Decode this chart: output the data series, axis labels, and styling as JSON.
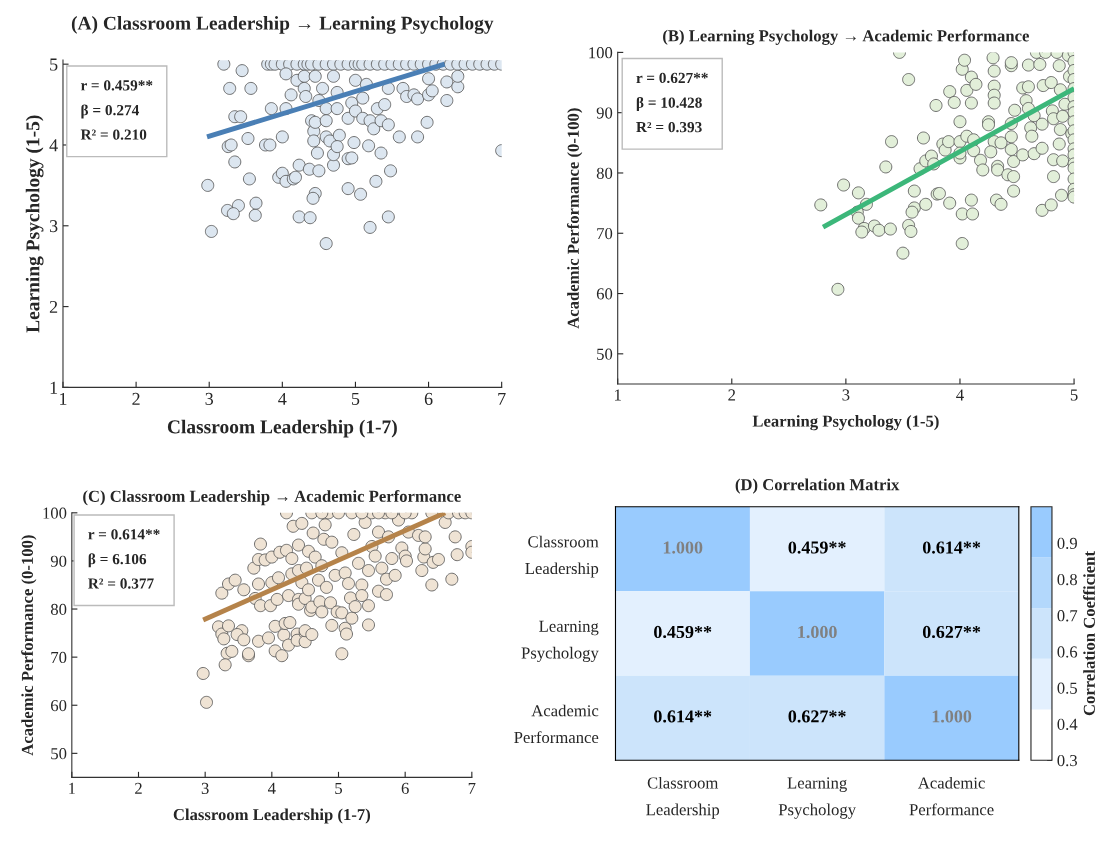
{
  "chart_data": [
    {
      "type": "scatter",
      "title": "(A) Classroom Leadership → Learning Psychology",
      "xlabel": "Classroom Leadership (1-7)",
      "ylabel": "Learning Psychology (1-5)",
      "xlim": [
        1,
        7
      ],
      "ylim": [
        1,
        5.05
      ],
      "xticks": [
        1,
        2,
        3,
        4,
        5,
        6,
        7
      ],
      "yticks": [
        1,
        2,
        3,
        4,
        5
      ],
      "marker": "circle",
      "grid": false,
      "annotations": [
        "r = 0.459**",
        "β = 0.274",
        "R² = 0.210"
      ],
      "series": [
        {
          "type": "scatter",
          "color": "#dce6f0",
          "x": [
            3.2,
            3.8,
            3.85,
            3.9,
            4.0,
            4.1,
            4.2,
            4.3,
            4.35,
            4.4,
            4.5,
            4.6,
            4.7,
            4.8,
            4.9,
            5.0,
            5.05,
            5.1,
            5.2,
            5.3,
            5.4,
            5.5,
            5.6,
            5.7,
            5.8,
            5.9,
            6.0,
            6.1,
            6.2,
            6.3,
            6.4,
            6.5,
            6.6,
            6.7,
            6.8,
            6.9,
            7.0,
            3.45,
            3.28,
            3.57,
            3.35,
            3.43,
            2.98,
            3.03,
            3.26,
            3.3,
            3.53,
            3.35,
            3.55,
            3.25,
            3.4,
            3.33,
            3.63,
            3.64,
            3.77,
            3.83,
            3.85,
            4.0,
            4.05,
            4.05,
            4.12,
            4.2,
            4.3,
            4.3,
            4.32,
            4.4,
            4.43,
            4.43,
            4.45,
            4.45,
            4.55,
            4.5,
            4.6,
            4.6,
            4.6,
            4.65,
            4.7,
            4.75,
            4.78,
            4.75,
            4.9,
            4.95,
            5.0,
            5.0,
            5.1,
            5.1,
            5.15,
            5.2,
            5.25,
            5.3,
            5.35,
            5.4,
            5.45,
            5.45,
            5.6,
            5.65,
            5.7,
            5.8,
            5.85,
            5.85,
            5.98,
            6.0,
            6.0,
            6.05,
            6.25,
            6.25,
            6.4,
            6.4,
            7.0,
            3.95,
            4.0,
            4.05,
            4.15,
            4.18,
            4.23,
            4.37,
            4.5,
            4.48,
            4.7,
            4.7,
            4.75,
            4.9,
            4.95,
            4.98,
            5.18,
            5.35,
            5.28,
            5.48,
            4.9,
            5.07,
            4.45,
            4.42,
            4.23,
            4.38,
            5.45,
            5.2,
            4.6
          ],
          "values": [
            5,
            5,
            5,
            5,
            5,
            5,
            5,
            5,
            5,
            5,
            5,
            5,
            5,
            5,
            5,
            5,
            5,
            5,
            5,
            5,
            5,
            5,
            5,
            5,
            5,
            5,
            5,
            5,
            5,
            5,
            5,
            5,
            5,
            5,
            5,
            5,
            5,
            4.92,
            4.7,
            4.7,
            4.35,
            4.35,
            3.5,
            2.93,
            3.98,
            4.0,
            4.08,
            3.79,
            3.58,
            3.19,
            3.25,
            3.15,
            3.13,
            3.28,
            4.0,
            4.0,
            4.45,
            4.1,
            4.45,
            4.88,
            4.62,
            4.8,
            4.85,
            4.7,
            4.6,
            4.3,
            4.17,
            4.05,
            4.28,
            4.85,
            4.7,
            4.55,
            4.45,
            4.3,
            4.1,
            4.05,
            4.85,
            4.65,
            4.12,
            4.45,
            4.33,
            4.52,
            4.42,
            4.8,
            4.58,
            4.33,
            4.75,
            4.3,
            4.2,
            4.45,
            4.3,
            4.5,
            4.25,
            4.7,
            4.1,
            4.7,
            4.6,
            4.62,
            4.1,
            4.57,
            4.28,
            4.62,
            4.82,
            4.67,
            4.55,
            4.78,
            4.72,
            4.85,
            3.93,
            3.6,
            3.65,
            3.55,
            3.58,
            3.6,
            3.75,
            3.7,
            3.68,
            3.9,
            3.75,
            3.88,
            3.98,
            3.83,
            3.84,
            4.03,
            3.99,
            3.9,
            3.55,
            3.68,
            3.46,
            3.39,
            3.4,
            3.34,
            3.11,
            3.1,
            3.11,
            2.98,
            2.78
          ]
        },
        {
          "type": "line",
          "marker": "none",
          "color": "#4a7fb5",
          "x": [
            2.97,
            6.22
          ],
          "values": [
            4.1,
            5.0
          ]
        }
      ]
    },
    {
      "type": "scatter",
      "title": "(B) Learning Psychology → Academic Performance",
      "xlabel": "Learning Psychology (1-5)",
      "ylabel": "Academic Performance (0-100)",
      "xlim": [
        1,
        5
      ],
      "ylim": [
        45,
        100
      ],
      "xticks": [
        1,
        2,
        3,
        4,
        5
      ],
      "yticks": [
        50,
        60,
        70,
        80,
        90,
        100
      ],
      "marker": "circle",
      "grid": false,
      "annotations": [
        "r = 0.627**",
        "β = 10.428",
        "R² = 0.393"
      ],
      "series": [
        {
          "type": "scatter",
          "color": "#e2efd9",
          "x": [
            3.47,
            3.55,
            3.4,
            3.35,
            2.98,
            2.78,
            3.11,
            3.18,
            3.1,
            3.11,
            3.16,
            3.14,
            3.25,
            3.29,
            3.39,
            3.55,
            3.57,
            3.5,
            2.93,
            3.6,
            3.6,
            3.58,
            3.7,
            3.8,
            3.82,
            3.91,
            3.68,
            3.65,
            3.7,
            3.75,
            3.77,
            3.85,
            3.87,
            3.9,
            3.79,
            3.91,
            3.95,
            4.0,
            4.0,
            4.0,
            4.0,
            4.02,
            4.04,
            4.06,
            4.06,
            4.1,
            4.14,
            4.1,
            4.12,
            4.12,
            4.18,
            4.2,
            4.02,
            4.1,
            4.11,
            4.02,
            4.29,
            4.3,
            4.3,
            4.3,
            4.3,
            4.25,
            4.25,
            4.3,
            4.27,
            4.33,
            4.33,
            4.36,
            4.32,
            4.36,
            4.42,
            4.45,
            4.45,
            4.45,
            4.45,
            4.45,
            4.47,
            4.47,
            4.47,
            4.48,
            4.55,
            4.55,
            4.58,
            4.6,
            4.6,
            4.6,
            4.62,
            4.63,
            4.65,
            4.65,
            4.67,
            4.7,
            4.72,
            4.72,
            4.73,
            4.72,
            4.75,
            4.8,
            4.81,
            4.82,
            4.82,
            4.82,
            4.8,
            4.85,
            4.87,
            4.88,
            4.88,
            4.87,
            4.9,
            4.9,
            4.89,
            4.92,
            4.95,
            4.96,
            4.98,
            5,
            5,
            5,
            5,
            5,
            5,
            5,
            5,
            5,
            5,
            5,
            5,
            5,
            5,
            5,
            5,
            5,
            5,
            5
          ],
          "values": [
            100,
            95.5,
            85.2,
            81,
            78,
            74.7,
            76.7,
            74.8,
            73.5,
            72.5,
            70.8,
            70.2,
            71.2,
            70.5,
            70.7,
            71.3,
            70.3,
            66.7,
            60.7,
            77,
            74.2,
            73.5,
            74.8,
            76.5,
            76.6,
            75,
            85.8,
            80.7,
            82,
            82.8,
            81.5,
            84.8,
            83.8,
            85.2,
            91.2,
            93.5,
            91.7,
            85.2,
            82.5,
            83.3,
            88.5,
            97.2,
            98.7,
            86.1,
            93.7,
            95.9,
            94.7,
            91.6,
            85.5,
            83.7,
            82.1,
            80.5,
            73.2,
            75.5,
            73.2,
            68.3,
            99.1,
            96.9,
            94.4,
            92.9,
            91.6,
            88.5,
            88.0,
            85.2,
            83.5,
            81.1,
            80.5,
            85,
            75.5,
            74.8,
            79.7,
            97.8,
            98.3,
            86,
            88.2,
            83.9,
            81.9,
            79.4,
            77,
            90.4,
            83,
            94.1,
            92,
            94.3,
            97.9,
            90.7,
            87.5,
            86.1,
            89.5,
            83.2,
            100,
            98,
            88.1,
            84.1,
            94.5,
            73.8,
            100,
            95,
            90.3,
            89,
            82.2,
            79.4,
            74.7,
            100,
            97.8,
            93.8,
            87.2,
            84.8,
            89.4,
            82,
            76.3,
            91.4,
            99.5,
            96,
            86.5,
            100,
            98.5,
            97,
            95.5,
            94,
            92.5,
            91,
            90,
            88.5,
            87,
            85.5,
            84,
            83,
            81.5,
            80.8,
            79,
            77.3,
            76.4,
            76
          ]
        },
        {
          "type": "line",
          "marker": "none",
          "color": "#3cb77a",
          "x": [
            2.8,
            5.0
          ],
          "values": [
            71,
            94
          ]
        }
      ]
    },
    {
      "type": "scatter",
      "title": "(C) Classroom Leadership → Academic Performance",
      "xlabel": "Classroom Leadership (1-7)",
      "ylabel": "Academic Performance (0-100)",
      "xlim": [
        1,
        7
      ],
      "ylim": [
        45,
        100
      ],
      "xticks": [
        1,
        2,
        3,
        4,
        5,
        6,
        7
      ],
      "yticks": [
        50,
        60,
        70,
        80,
        90,
        100
      ],
      "marker": "circle",
      "grid": false,
      "annotations": [
        "r = 0.614**",
        "β = 6.106",
        "R² = 0.377"
      ],
      "series": [
        {
          "type": "scatter",
          "color": "#efe3d4",
          "x": [
            2.97,
            3.02,
            3.2,
            3.25,
            3.28,
            3.35,
            3.33,
            3.4,
            3.3,
            3.25,
            3.35,
            3.45,
            3.55,
            3.48,
            3.58,
            3.58,
            3.65,
            3.65,
            3.8,
            3.75,
            3.73,
            3.83,
            3.8,
            3.8,
            3.83,
            3.9,
            3.95,
            3.98,
            4.0,
            4.0,
            4.05,
            4.05,
            4.08,
            4.1,
            4.12,
            4.15,
            4.18,
            4.2,
            4.22,
            4.25,
            4.25,
            4.27,
            4.22,
            4.3,
            4.3,
            4.32,
            4.38,
            4.38,
            4.4,
            4.4,
            4.4,
            4.4,
            4.45,
            4.45,
            4.5,
            4.5,
            4.5,
            4.5,
            4.52,
            4.55,
            4.55,
            4.58,
            4.6,
            4.6,
            4.6,
            4.62,
            4.65,
            4.7,
            4.72,
            4.75,
            4.75,
            4.78,
            4.8,
            4.82,
            4.85,
            4.88,
            4.9,
            4.9,
            4.95,
            4.98,
            5.05,
            5.05,
            5.05,
            5.1,
            5.12,
            5.1,
            5.15,
            5.18,
            5.2,
            5.2,
            5.23,
            5.25,
            5.3,
            5.35,
            5.35,
            5.4,
            5.45,
            5.45,
            5.45,
            5.5,
            5.5,
            5.55,
            5.6,
            5.6,
            5.65,
            5.7,
            5.72,
            5.72,
            5.75,
            5.8,
            5.85,
            5.9,
            5.95,
            6.0,
            6.02,
            6.05,
            6.1,
            6.2,
            6.25,
            6.28,
            6.3,
            6.3,
            6.4,
            6.42,
            6.5,
            6.4,
            6.6,
            6.65,
            6.7,
            6.75,
            6.78,
            6.8,
            6.9,
            7.0,
            7.0,
            7.0,
            5.0,
            4.75,
            5.35,
            5.6,
            5.8,
            6.0
          ],
          "values": [
            66.6,
            60.6,
            76.3,
            74.8,
            73.8,
            76.5,
            70.8,
            71.2,
            68.4,
            83.3,
            85.2,
            86,
            75.5,
            74.7,
            73.6,
            84,
            70.3,
            70.7,
            73.3,
            82.2,
            88.5,
            80.7,
            85.2,
            90.3,
            93.5,
            90.2,
            74,
            80.7,
            90.8,
            85.5,
            71.3,
            76.4,
            82,
            86.5,
            91.8,
            70.3,
            74.6,
            77,
            92.2,
            72.5,
            82.8,
            77.2,
            100,
            87.3,
            90.5,
            97.2,
            74.8,
            73.5,
            82,
            81,
            88,
            93.3,
            85.5,
            97.8,
            75,
            73.2,
            75.5,
            82.2,
            88.5,
            84,
            92,
            79.7,
            74.7,
            80.4,
            100,
            95.8,
            90.8,
            86,
            81.5,
            79.4,
            89,
            94.5,
            97.5,
            84.5,
            100,
            81.3,
            76.6,
            93.9,
            87,
            79.4,
            79.2,
            70.7,
            91.7,
            76,
            74.8,
            87.5,
            85.3,
            82.3,
            78.1,
            100,
            95.5,
            80.5,
            89.5,
            85,
            82.8,
            98,
            76.7,
            80.7,
            88,
            93,
            100,
            91,
            83.7,
            96,
            88.5,
            100,
            83,
            86.2,
            95,
            90.5,
            87,
            98.5,
            92.7,
            91,
            90,
            96,
            100,
            95.3,
            88,
            90.8,
            92.5,
            95,
            85,
            89.7,
            90.3,
            100,
            98,
            100,
            86.2,
            95,
            91.3,
            100,
            100,
            100,
            93,
            91.8,
            100,
            100,
            100,
            100,
            100,
            100
          ]
        },
        {
          "type": "line",
          "marker": "none",
          "color": "#b5834a",
          "x": [
            2.97,
            6.6
          ],
          "values": [
            77.7,
            100
          ]
        }
      ]
    },
    {
      "type": "heatmap",
      "title": "(D) Correlation Matrix",
      "clabel": "Correlation Coefficient",
      "categories": [
        "Classroom Leadership",
        "Learning Psychology",
        "Academic Performance"
      ],
      "y_categories": [
        "Classroom Leadership",
        "Learning Psychology",
        "Academic Performance"
      ],
      "cells": [
        [
          1.0,
          0.459,
          0.614
        ],
        [
          0.459,
          1.0,
          0.627
        ],
        [
          0.614,
          0.627,
          1.0
        ]
      ],
      "cell_labels": [
        [
          "1.000",
          "0.459**",
          "0.614**"
        ],
        [
          "0.459**",
          "1.000",
          "0.627**"
        ],
        [
          "0.614**",
          "0.627**",
          "1.000"
        ]
      ],
      "colors": [
        "#ffffff",
        "#e3f0fe",
        "#cce4fb",
        "#b3d8fc",
        "#99cbfe"
      ],
      "clim": [
        0.3,
        1.0
      ],
      "cticks": [
        0.3,
        0.4,
        0.5,
        0.6,
        0.7,
        0.8,
        0.9
      ]
    }
  ]
}
